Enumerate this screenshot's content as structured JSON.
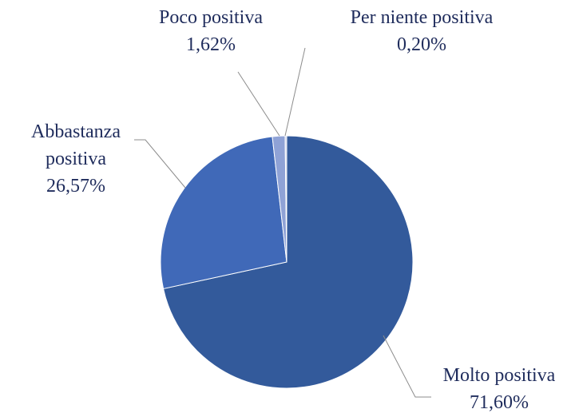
{
  "chart_data": {
    "type": "pie",
    "categories": [
      "Molto positiva",
      "Abbastanza positiva",
      "Poco positiva",
      "Per niente positiva"
    ],
    "values": [
      71.6,
      26.57,
      1.62,
      0.2
    ],
    "value_labels": [
      "71,60%",
      "26,57%",
      "1,62%",
      "0,20%"
    ],
    "colors": [
      "#335a9b",
      "#4069b8",
      "#8fa2d6",
      "#c3cbe8"
    ]
  }
}
